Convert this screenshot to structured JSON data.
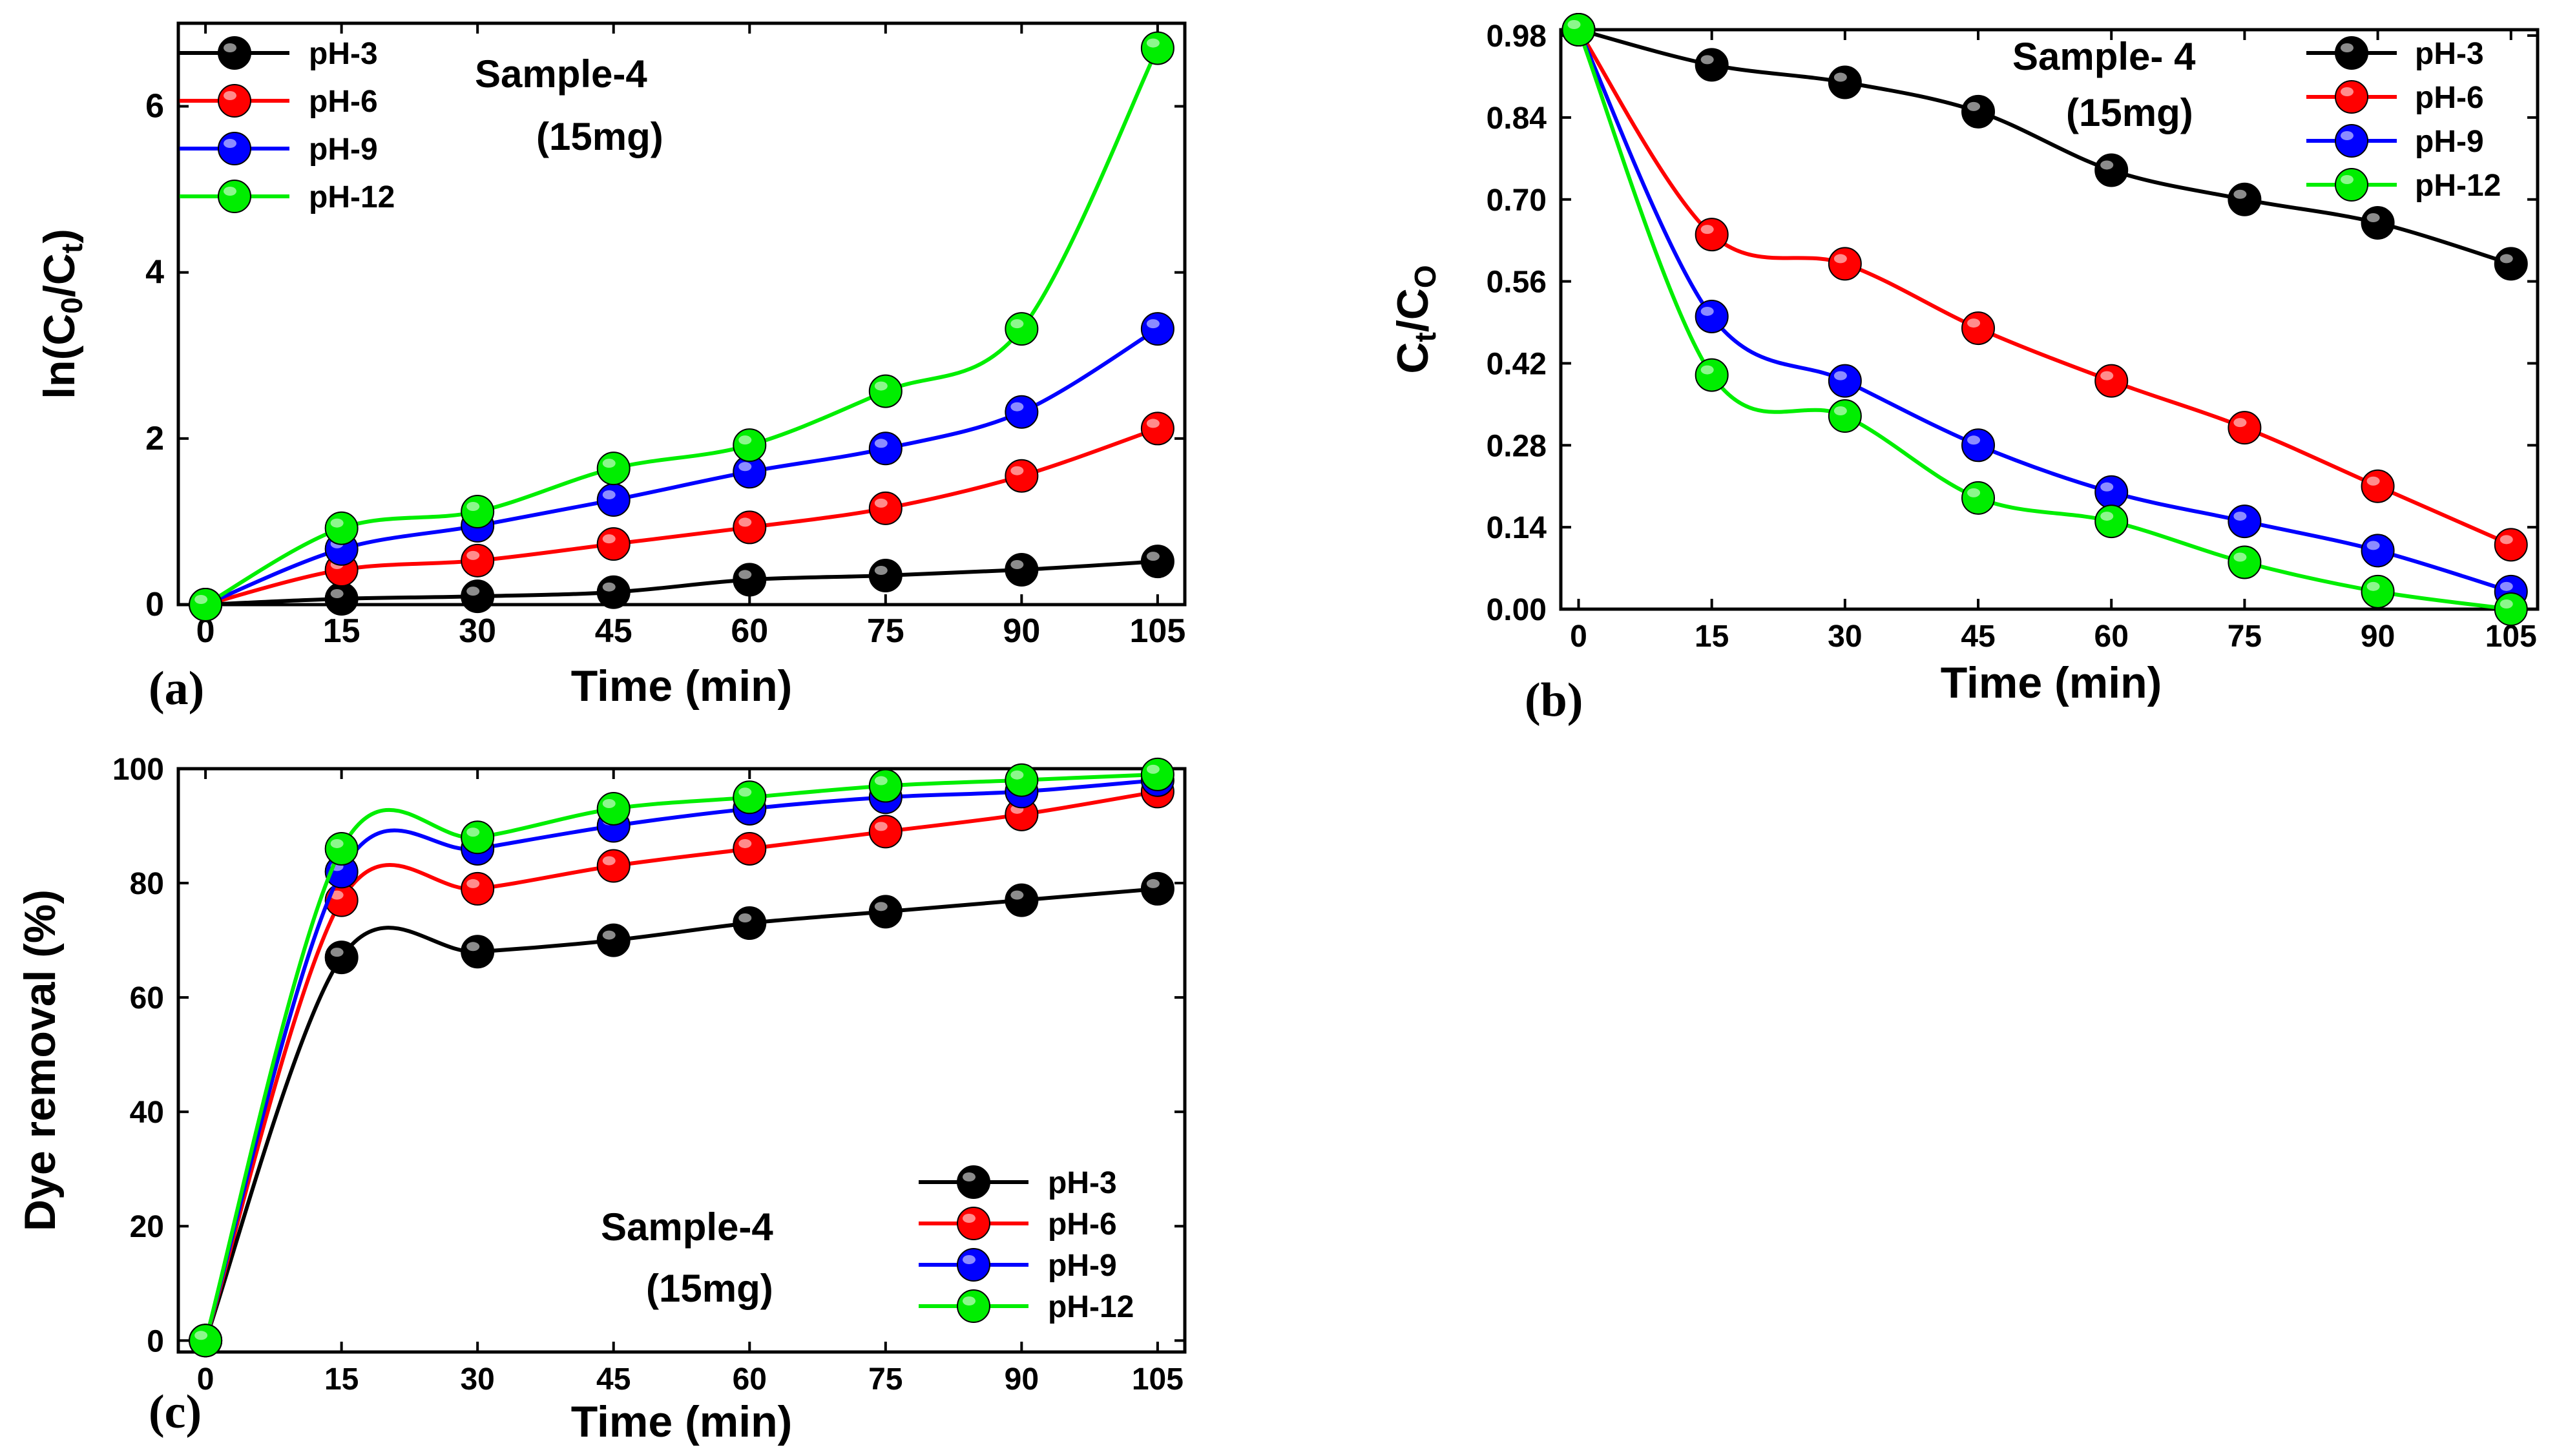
{
  "chart_data": [
    {
      "id": "a",
      "type": "line",
      "panel_label": "(a)",
      "title": "Sample-4",
      "subtitle": "(15mg)",
      "xlabel": "Time (min)",
      "ylabel_parts": [
        "ln(C",
        "0",
        "/C",
        "t",
        ")"
      ],
      "xlim": [
        -3,
        108
      ],
      "ylim": [
        0,
        7
      ],
      "xticks": [
        0,
        15,
        30,
        45,
        60,
        75,
        90,
        105
      ],
      "yticks": [
        0,
        2,
        4,
        6
      ],
      "legend_position": "top-left",
      "series": [
        {
          "name": "pH-3",
          "color": "#000000",
          "x": [
            0,
            15,
            30,
            45,
            60,
            75,
            90,
            105
          ],
          "values": [
            0,
            0.07,
            0.1,
            0.15,
            0.3,
            0.35,
            0.42,
            0.52
          ]
        },
        {
          "name": "pH-6",
          "color": "#ff0000",
          "x": [
            0,
            15,
            30,
            45,
            60,
            75,
            90,
            105
          ],
          "values": [
            0,
            0.42,
            0.53,
            0.73,
            0.93,
            1.16,
            1.55,
            2.12
          ]
        },
        {
          "name": "pH-9",
          "color": "#0000ff",
          "x": [
            0,
            15,
            30,
            45,
            60,
            75,
            90,
            105
          ],
          "values": [
            0,
            0.67,
            0.95,
            1.26,
            1.6,
            1.88,
            2.32,
            3.32
          ]
        },
        {
          "name": "pH-12",
          "color": "#00ee00",
          "x": [
            0,
            15,
            30,
            45,
            60,
            75,
            90,
            105
          ],
          "values": [
            0,
            0.92,
            1.12,
            1.64,
            1.92,
            2.57,
            3.32,
            6.7
          ]
        }
      ]
    },
    {
      "id": "b",
      "type": "line",
      "panel_label": "(b)",
      "title": "Sample- 4",
      "subtitle": "(15mg)",
      "xlabel": "Time (min)",
      "ylabel_parts": [
        "C",
        "t",
        "/C",
        "O"
      ],
      "xlim": [
        -2,
        108
      ],
      "ylim": [
        0,
        0.99
      ],
      "xticks": [
        0,
        15,
        30,
        45,
        60,
        75,
        90,
        105
      ],
      "yticks": [
        "0.00",
        "0.14",
        "0.28",
        "0.42",
        "0.56",
        "0.70",
        "0.84",
        "0.98"
      ],
      "legend_position": "top-right",
      "series": [
        {
          "name": "pH-3",
          "color": "#000000",
          "x": [
            0,
            15,
            30,
            45,
            60,
            75,
            90,
            105
          ],
          "values": [
            0.99,
            0.93,
            0.9,
            0.85,
            0.75,
            0.7,
            0.66,
            0.59
          ]
        },
        {
          "name": "pH-6",
          "color": "#ff0000",
          "x": [
            0,
            15,
            30,
            45,
            60,
            75,
            90,
            105
          ],
          "values": [
            0.99,
            0.64,
            0.59,
            0.48,
            0.39,
            0.31,
            0.21,
            0.11
          ]
        },
        {
          "name": "pH-9",
          "color": "#0000ff",
          "x": [
            0,
            15,
            30,
            45,
            60,
            75,
            90,
            105
          ],
          "values": [
            0.99,
            0.5,
            0.39,
            0.28,
            0.2,
            0.15,
            0.1,
            0.03
          ]
        },
        {
          "name": "pH-12",
          "color": "#00ee00",
          "x": [
            0,
            15,
            30,
            45,
            60,
            75,
            90,
            105
          ],
          "values": [
            0.99,
            0.4,
            0.33,
            0.19,
            0.15,
            0.08,
            0.03,
            0.0
          ]
        }
      ]
    },
    {
      "id": "c",
      "type": "line",
      "panel_label": "(c)",
      "title": "Sample-4",
      "subtitle": "(15mg)",
      "xlabel": "Time (min)",
      "ylabel": "Dye removal (%)",
      "xlim": [
        -3,
        108
      ],
      "ylim": [
        -2,
        100
      ],
      "xticks": [
        0,
        15,
        30,
        45,
        60,
        75,
        90,
        105
      ],
      "yticks": [
        0,
        20,
        40,
        60,
        80,
        100
      ],
      "legend_position": "bottom-right",
      "series": [
        {
          "name": "pH-3",
          "color": "#000000",
          "x": [
            0,
            15,
            30,
            45,
            60,
            75,
            90,
            105
          ],
          "values": [
            0,
            67,
            68,
            70,
            73,
            75,
            77,
            79
          ]
        },
        {
          "name": "pH-6",
          "color": "#ff0000",
          "x": [
            0,
            15,
            30,
            45,
            60,
            75,
            90,
            105
          ],
          "values": [
            0,
            77,
            79,
            83,
            86,
            89,
            92,
            96
          ]
        },
        {
          "name": "pH-9",
          "color": "#0000ff",
          "x": [
            0,
            15,
            30,
            45,
            60,
            75,
            90,
            105
          ],
          "values": [
            0,
            82,
            86,
            90,
            93,
            95,
            96,
            98
          ]
        },
        {
          "name": "pH-12",
          "color": "#00ee00",
          "x": [
            0,
            15,
            30,
            45,
            60,
            75,
            90,
            105
          ],
          "values": [
            0,
            86,
            88,
            93,
            95,
            97,
            98,
            99
          ]
        }
      ]
    }
  ]
}
